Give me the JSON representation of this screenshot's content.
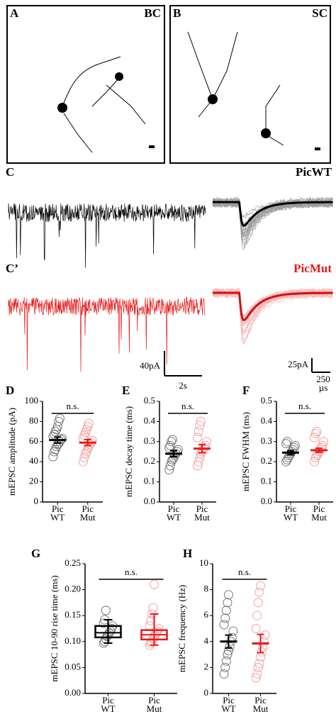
{
  "panels": {
    "A": "A",
    "B": "B",
    "C": "C",
    "C2": "C’",
    "D": "D",
    "E": "E",
    "F": "F",
    "G": "G",
    "H": "H"
  },
  "images": [
    {
      "label": "BC"
    },
    {
      "label": "SC"
    }
  ],
  "traces": {
    "wt_label": "PicWT",
    "mut_label": "PicMut",
    "scale_left_y": "40pA",
    "scale_left_x": "2s",
    "scale_right_y": "25pA",
    "scale_right_x": "250 µs"
  },
  "chart_data": [
    {
      "type": "strip",
      "ylabel": "mEPSC amplitude (pA)",
      "annotation": "n.s.",
      "categories": [
        "Pic WT",
        "Pic Mut"
      ],
      "ylim": [
        0,
        100
      ],
      "yticks": [
        0,
        20,
        40,
        60,
        80,
        100
      ],
      "series": [
        {
          "color": "#000000",
          "values": [
            45,
            50,
            52,
            55,
            57,
            58,
            60,
            62,
            63,
            65,
            67,
            70,
            72,
            75,
            80,
            83
          ],
          "mean": 61.5,
          "sem": 3
        },
        {
          "color": "#e8191b",
          "values": [
            40,
            44,
            48,
            50,
            53,
            55,
            57,
            59,
            61,
            63,
            66,
            69,
            72,
            75,
            78
          ],
          "mean": 59,
          "sem": 3
        }
      ]
    },
    {
      "type": "strip",
      "ylabel": "mEPSC decay time (ms)",
      "annotation": "n.s.",
      "categories": [
        "Pic WT",
        "Pic Mut"
      ],
      "ylim": [
        0,
        0.5
      ],
      "yticks": [
        {
          "value": 0,
          "label": "0.0"
        },
        {
          "value": 0.1,
          "label": "0.1"
        },
        {
          "value": 0.2,
          "label": "0.2"
        },
        {
          "value": 0.3,
          "label": "0.3"
        },
        {
          "value": 0.4,
          "label": "0.4"
        },
        {
          "value": 0.5,
          "label": "0.5"
        }
      ],
      "series": [
        {
          "color": "#000000",
          "values": [
            0.16,
            0.18,
            0.2,
            0.21,
            0.22,
            0.23,
            0.24,
            0.25,
            0.26,
            0.27,
            0.28,
            0.3,
            0.31
          ],
          "mean": 0.24,
          "sem": 0.015
        },
        {
          "color": "#e8191b",
          "values": [
            0.18,
            0.2,
            0.22,
            0.24,
            0.25,
            0.26,
            0.27,
            0.28,
            0.3,
            0.32,
            0.35,
            0.38,
            0.4
          ],
          "mean": 0.265,
          "sem": 0.02
        }
      ]
    },
    {
      "type": "strip",
      "ylabel": "mEPSC FWHM (ms)",
      "annotation": "n.s.",
      "categories": [
        "Pic WT",
        "Pic Mut"
      ],
      "ylim": [
        0,
        0.5
      ],
      "yticks": [
        {
          "value": 0,
          "label": "0.0"
        },
        {
          "value": 0.1,
          "label": "0.1"
        },
        {
          "value": 0.2,
          "label": "0.2"
        },
        {
          "value": 0.3,
          "label": "0.3"
        },
        {
          "value": 0.4,
          "label": "0.4"
        },
        {
          "value": 0.5,
          "label": "0.5"
        }
      ],
      "series": [
        {
          "color": "#000000",
          "values": [
            0.2,
            0.21,
            0.22,
            0.23,
            0.24,
            0.25,
            0.26,
            0.27,
            0.28,
            0.29,
            0.3
          ],
          "mean": 0.245,
          "sem": 0.01
        },
        {
          "color": "#e8191b",
          "values": [
            0.2,
            0.22,
            0.23,
            0.24,
            0.25,
            0.26,
            0.27,
            0.28,
            0.3,
            0.32,
            0.34,
            0.35
          ],
          "mean": 0.257,
          "sem": 0.01
        }
      ]
    },
    {
      "type": "box",
      "ylabel": "mEPSC 10-90 rise time (ms)",
      "annotation": "n.s.",
      "categories": [
        "Pic WT",
        "Pic Mut"
      ],
      "ylim": [
        0,
        0.25
      ],
      "yticks": [
        {
          "value": 0,
          "label": "0.00"
        },
        {
          "value": 0.05,
          "label": "0.05"
        },
        {
          "value": 0.1,
          "label": "0.10"
        },
        {
          "value": 0.15,
          "label": "0.15"
        },
        {
          "value": 0.2,
          "label": "0.20"
        },
        {
          "value": 0.25,
          "label": "0.25"
        }
      ],
      "series": [
        {
          "color": "#000000",
          "values": [
            0.097,
            0.1,
            0.105,
            0.11,
            0.113,
            0.117,
            0.12,
            0.125,
            0.13,
            0.135,
            0.142,
            0.16
          ],
          "box": {
            "whisker_low": 0.097,
            "q1": 0.108,
            "median": 0.117,
            "q3": 0.13,
            "whisker_high": 0.142
          }
        },
        {
          "color": "#e8191b",
          "values": [
            0.093,
            0.097,
            0.1,
            0.105,
            0.11,
            0.113,
            0.117,
            0.12,
            0.125,
            0.13,
            0.14,
            0.153,
            0.165,
            0.21
          ],
          "box": {
            "whisker_low": 0.093,
            "q1": 0.104,
            "median": 0.113,
            "q3": 0.122,
            "whisker_high": 0.153
          }
        }
      ]
    },
    {
      "type": "strip",
      "ylabel": "mEPSC frequency (Hz)",
      "annotation": "n.s.",
      "categories": [
        "Pic WT",
        "Pic Mut"
      ],
      "ylim": [
        0,
        10
      ],
      "yticks": [
        0,
        2,
        4,
        6,
        8,
        10
      ],
      "series": [
        {
          "color": "#000000",
          "values": [
            1.5,
            2,
            2.5,
            3,
            3.3,
            3.6,
            4,
            4.3,
            4.8,
            5.3,
            5.8,
            6.4,
            7,
            7.6
          ],
          "mean": 4.0,
          "sem": 0.5
        },
        {
          "color": "#e8191b",
          "values": [
            1.2,
            1.5,
            2,
            2.3,
            2.8,
            3.2,
            3.6,
            4,
            4.5,
            5,
            6,
            7,
            7.8,
            8.3
          ],
          "mean": 3.85,
          "sem": 0.7
        }
      ]
    }
  ]
}
